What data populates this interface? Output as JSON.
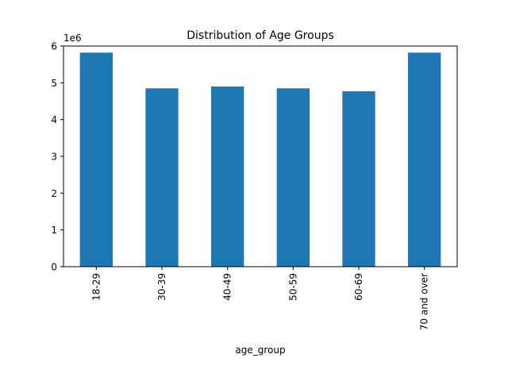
{
  "chart_data": {
    "type": "bar",
    "title": "Distribution of Age Groups",
    "xlabel": "age_group",
    "ylabel": "",
    "y_offset_label": "1e6",
    "y_scale": 1000000,
    "categories": [
      "18-29",
      "30-39",
      "40-49",
      "50-59",
      "60-69",
      "70 and over"
    ],
    "values": [
      5820000,
      4850000,
      4900000,
      4850000,
      4770000,
      5820000
    ],
    "ylim": [
      0,
      6000000
    ],
    "yticks": [
      0,
      1,
      2,
      3,
      4,
      5,
      6
    ],
    "bar_color": "#1f77b4",
    "grid": false,
    "legend": "none"
  }
}
